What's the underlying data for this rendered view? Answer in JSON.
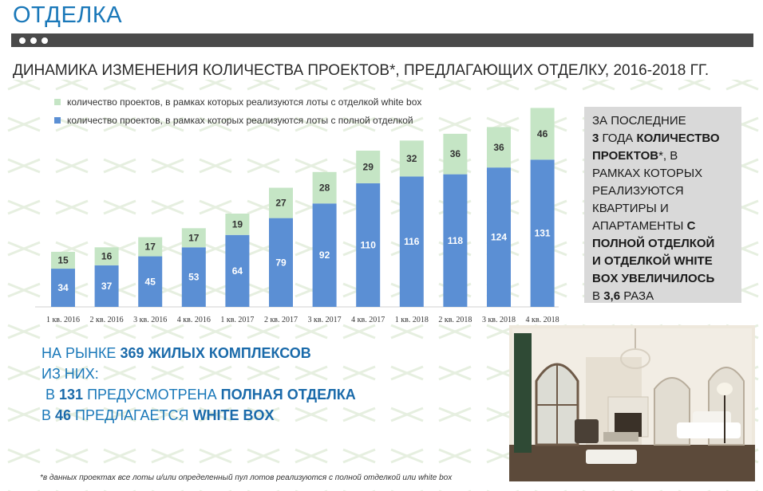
{
  "header": {
    "title": "ОТДЕЛКА",
    "subtitle": "ДИНАМИКА ИЗМЕНЕНИЯ КОЛИЧЕСТВА ПРОЕКТОВ*, ПРЕДЛАГАЮЩИХ ОТДЕЛКУ, 2016-2018 ГГ."
  },
  "colors": {
    "accent": "#1a78b9",
    "series_full": "#5b8fd4",
    "series_whitebox": "#c5e5c5",
    "topbar": "#4a4a4a"
  },
  "chart_data": {
    "type": "bar",
    "stacked": true,
    "title": "",
    "xlabel": "",
    "ylabel": "",
    "categories": [
      "1 кв. 2016",
      "2 кв. 2016",
      "3 кв. 2016",
      "4 кв. 2016",
      "1 кв. 2017",
      "2 кв. 2017",
      "3 кв. 2017",
      "4 кв. 2017",
      "1 кв. 2018",
      "2 кв. 2018",
      "3 кв. 2018",
      "4 кв. 2018"
    ],
    "series": [
      {
        "name": "количество проектов, в рамках которых реализуются лоты с полной отделкой",
        "values": [
          34,
          37,
          45,
          53,
          64,
          79,
          92,
          110,
          116,
          118,
          124,
          131
        ]
      },
      {
        "name": "количество проектов, в рамках которых реализуются лоты с отделкой white box",
        "values": [
          15,
          16,
          17,
          17,
          19,
          27,
          28,
          29,
          32,
          36,
          36,
          46
        ]
      }
    ],
    "ylim": [
      0,
      180
    ],
    "grid": false,
    "legend_position": "top-left"
  },
  "infobox": {
    "line1": "ЗА ПОСЛЕДНИЕ",
    "line2_a": "3",
    "line2_b": " ГОДА ",
    "line2_c": "КОЛИЧЕСТВО",
    "line3_a": "ПРОЕКТОВ",
    "line3_b": "*, В",
    "line4": "РАМКАХ КОТОРЫХ",
    "line5": "РЕАЛИЗУЮТСЯ",
    "line6": "КВАРТИРЫ И",
    "line7_a": "АПАРТАМЕНТЫ ",
    "line7_b": "С",
    "line8": "ПОЛНОЙ ОТДЕЛКОЙ",
    "line9": "И ОТДЕЛКОЙ WHITE",
    "line10": "BOX  УВЕЛИЧИЛОСЬ",
    "line11_a": "В ",
    "line11_b": "3,6",
    "line11_c": " РАЗА"
  },
  "market": {
    "l1_a": "НА РЫНКЕ ",
    "l1_b": "369 ЖИЛЫХ КОМПЛЕКСОВ",
    "l2": "ИЗ НИХ:",
    "l3_a": " В ",
    "l3_b": "131",
    "l3_c": " ПРЕДУСМОТРЕНА ",
    "l3_d": "ПОЛНАЯ ОТДЕЛКА",
    "l4_a": "В ",
    "l4_b": "46",
    "l4_c": " ПРЕДЛАГАЕТСЯ ",
    "l4_d": "WHITE BOX"
  },
  "footnote": "*в данных проектах все лоты и/или определенный пул лотов реализуются с полной отделкой или  white box"
}
